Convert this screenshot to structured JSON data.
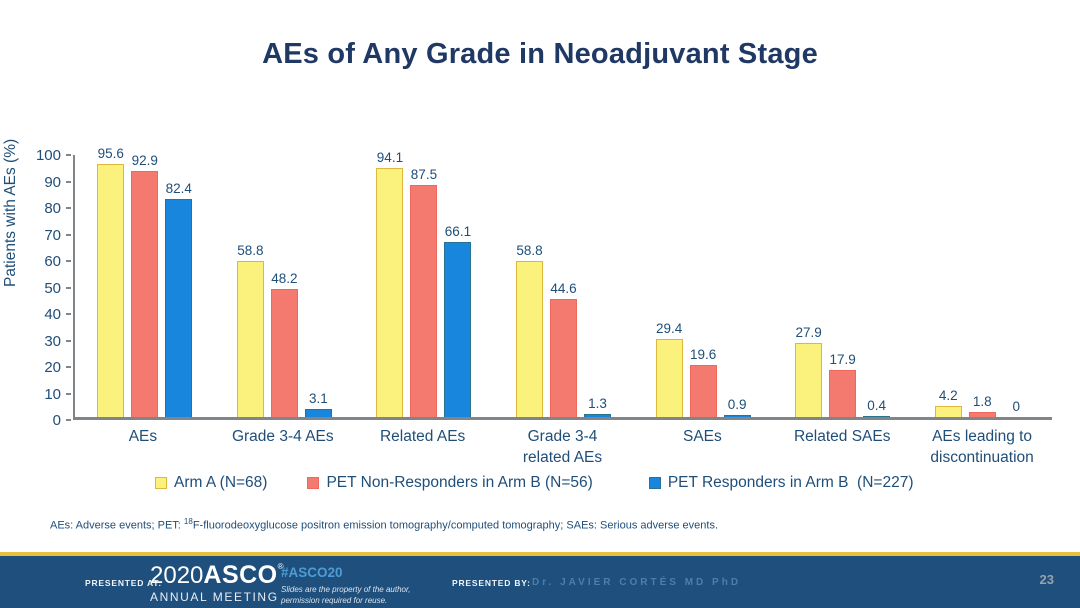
{
  "slide": {
    "title": "AEs of Any Grade in Neoadjuvant Stage"
  },
  "chart_data": {
    "type": "bar",
    "title": "AEs of Any Grade in Neoadjuvant Stage",
    "xlabel": "",
    "ylabel": "Patients with AEs (%)",
    "ylim": [
      0,
      100
    ],
    "ytick_step": 10,
    "grid": false,
    "legend_position": "bottom",
    "categories": [
      "AEs",
      "Grade 3-4 AEs",
      "Related AEs",
      "Grade 3-4\nrelated AEs",
      "SAEs",
      "Related SAEs",
      "AEs leading to\ndiscontinuation"
    ],
    "series": [
      {
        "name": "Arm A (N=68)",
        "color": "#fbf27d",
        "border_color": "#dfb73c",
        "values": [
          95.6,
          58.8,
          94.1,
          58.8,
          29.4,
          27.9,
          4.2
        ]
      },
      {
        "name": "PET Non-Responders in Arm B (N=56)",
        "color": "#f4796f",
        "border_color": "#ee685e",
        "values": [
          92.9,
          48.2,
          87.5,
          44.6,
          19.6,
          17.9,
          1.8
        ]
      },
      {
        "name": "PET Responders in Arm B  (N=227)",
        "color": "#1886dc",
        "border_color": "#2a7390",
        "values": [
          82.4,
          3.1,
          66.1,
          1.3,
          0.9,
          0.4,
          0
        ]
      }
    ]
  },
  "footnote": {
    "part1": "AEs: Adverse events; PET: ",
    "sup": "18",
    "part2": "F-fluorodeoxyglucose positron emission tomography/computed tomography; SAEs: Serious adverse events."
  },
  "footer": {
    "presented_at_label": "PRESENTED AT:",
    "logo_year": "2020",
    "logo_name": "ASCO",
    "logo_reg": "®",
    "logo_subtitle": "ANNUAL MEETING",
    "hashtag": "#ASCO20",
    "disclaimer_line1": "Slides are the property of the author,",
    "disclaimer_line2": "permission required for reuse.",
    "presented_by_label": "PRESENTED BY:",
    "presenter": "Dr. JAVIER CORTÉS MD PhD",
    "page_number": "23"
  },
  "colors": {
    "title_text": "#1f3864",
    "axis_text": "#1f4e79",
    "axis_line": "#808589",
    "footer_bar": "#1e4f7d",
    "footer_gold_line": "#e5c13d",
    "hashtag_blue": "#4e9cd5"
  }
}
